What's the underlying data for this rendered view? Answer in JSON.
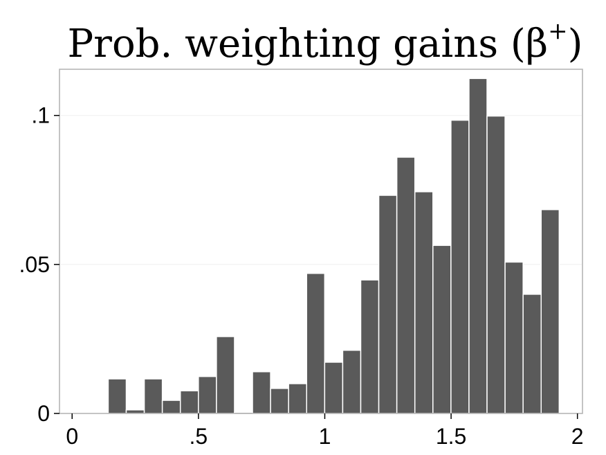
{
  "chart_data": {
    "type": "bar",
    "title": "Prob. weighting gains (β",
    "title_superscript": "+",
    "title_close": ")",
    "xlabel": "",
    "ylabel": "",
    "xlim": [
      -0.05,
      2.02
    ],
    "ylim": [
      0,
      0.1155
    ],
    "bin_width": 0.0714,
    "bin_start": 0,
    "values": [
      0,
      0,
      0.0116,
      0.0012,
      0.0116,
      0.0044,
      0.0076,
      0.0124,
      0.0258,
      0.0004,
      0.014,
      0.0084,
      0.01,
      0.047,
      0.0172,
      0.0212,
      0.0448,
      0.0732,
      0.086,
      0.0744,
      0.0564,
      0.0984,
      0.1124,
      0.0998,
      0.0508,
      0.04,
      0.0684
    ],
    "x_ticks": [
      0,
      0.5,
      1,
      1.5,
      2
    ],
    "x_tick_labels": [
      "0",
      ".5",
      "1",
      "1.5",
      "2"
    ],
    "y_ticks": [
      0,
      0.05,
      0.1
    ],
    "y_tick_labels": [
      "0",
      ".05",
      ".1"
    ],
    "grid": true,
    "legend": "none",
    "bar_color": "#5a5a5a"
  }
}
